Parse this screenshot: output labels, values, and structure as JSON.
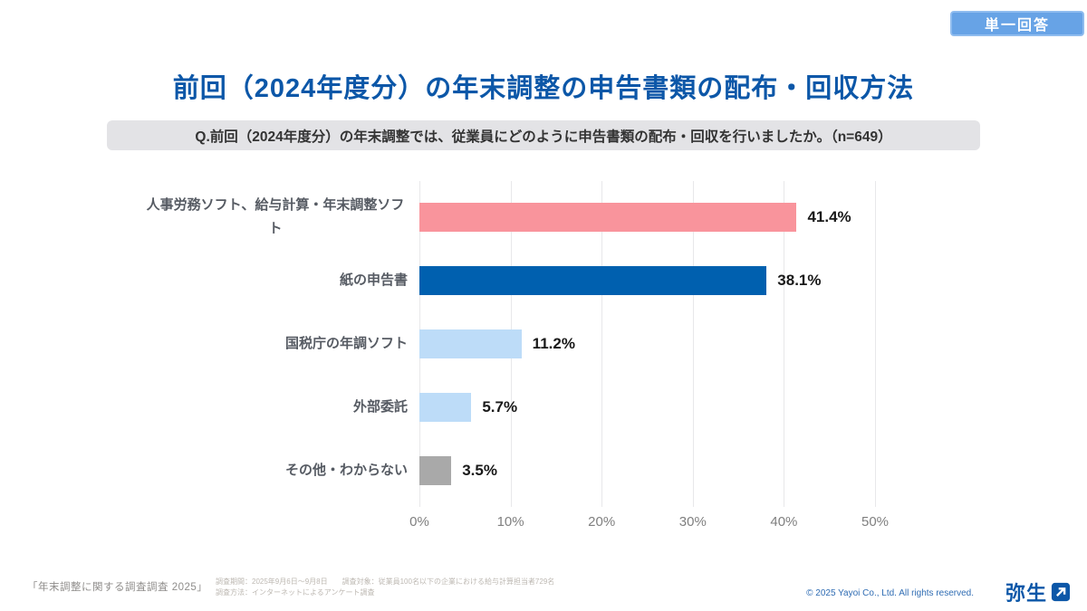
{
  "badge": {
    "label": "単一回答"
  },
  "header": {
    "title": "前回（2024年度分）の年末調整の申告書類の配布・回収方法"
  },
  "question": {
    "text": "Q.前回（2024年度分）の年末調整では、従業員にどのように申告書類の配布・回収を行いましたか。（n=649）"
  },
  "chart_data": {
    "type": "bar",
    "orientation": "horizontal",
    "categories": [
      "人事労務ソフト、給与計算・年末調整ソフト",
      "紙の申告書",
      "国税庁の年調ソフト",
      "外部委託",
      "その他・わからない"
    ],
    "values": [
      41.4,
      38.1,
      11.2,
      5.7,
      3.5
    ],
    "value_labels": [
      "41.4%",
      "38.1%",
      "11.2%",
      "5.7%",
      "3.5%"
    ],
    "bar_colors": [
      "#f9949c",
      "#0060af",
      "#bddcf8",
      "#bddcf8",
      "#a9a9a9"
    ],
    "xlim": [
      0,
      50
    ],
    "x_ticks": [
      "0%",
      "10%",
      "20%",
      "30%",
      "40%",
      "50%"
    ],
    "grid": true,
    "legend": "none",
    "title": "前回（2024年度分）の年末調整の申告書類の配布・回収方法"
  },
  "footer": {
    "survey_name": "「年末調整に関する調査調査 2025」",
    "note_line1": "調査期間：2025年9月6日～9月8日　　調査対象：従業員100名以下の企業における給与計算担当者729名",
    "note_line2": "調査方法：インターネットによるアンケート調査",
    "copyright": "© 2025 Yayoi Co., Ltd.  All rights reserved.",
    "logo_text": "弥生"
  },
  "colors": {
    "title": "#0c57a8",
    "badge_bg": "#67a3e6",
    "question_bg": "#e3e3e6",
    "gridline": "#e8e8ea",
    "axis_text": "#7f7f7f",
    "copyright_text": "#2f6cb3"
  }
}
